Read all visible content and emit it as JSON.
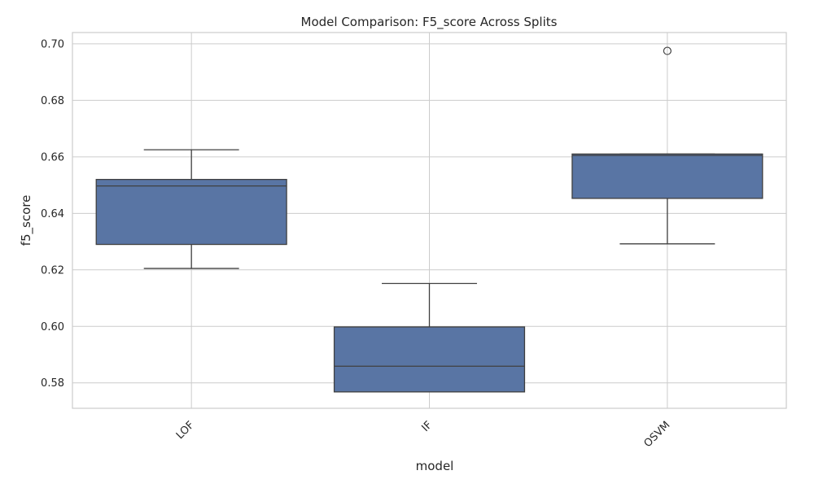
{
  "chart_data": {
    "type": "box",
    "title": "Model Comparison: F5_score Across Splits",
    "xlabel": "model",
    "ylabel": "f5_score",
    "ylim": [
      0.571,
      0.704
    ],
    "yticks": [
      0.58,
      0.6,
      0.62,
      0.64,
      0.66,
      0.68,
      0.7
    ],
    "ytick_labels": [
      "0.58",
      "0.60",
      "0.62",
      "0.64",
      "0.66",
      "0.68",
      "0.70"
    ],
    "grid": true,
    "box_color": "#5975a4",
    "line_color": "#404040",
    "categories": [
      "LOF",
      "IF",
      "OSVM"
    ],
    "boxes": [
      {
        "model": "LOF",
        "whisker_low": 0.6205,
        "q1": 0.629,
        "median": 0.6497,
        "q3": 0.652,
        "whisker_high": 0.6625,
        "outliers": []
      },
      {
        "model": "IF",
        "whisker_low": 0.5768,
        "q1": 0.5768,
        "median": 0.5859,
        "q3": 0.5998,
        "whisker_high": 0.6152,
        "outliers": []
      },
      {
        "model": "OSVM",
        "whisker_low": 0.6292,
        "q1": 0.6453,
        "median": 0.6605,
        "q3": 0.661,
        "whisker_high": 0.661,
        "outliers": [
          0.6975
        ]
      }
    ]
  }
}
